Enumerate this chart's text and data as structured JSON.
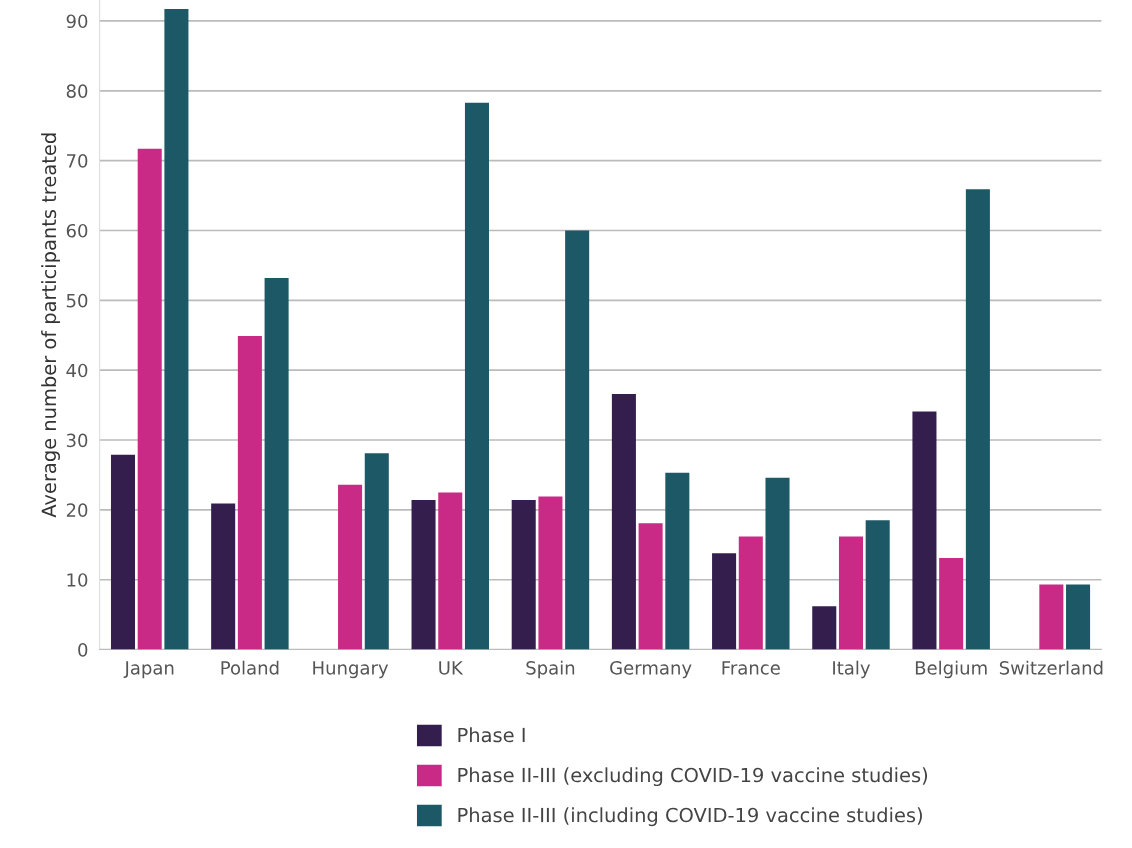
{
  "chart_data": {
    "type": "bar",
    "ylabel": "Average number of participants treated",
    "categories": [
      "Japan",
      "Poland",
      "Hungary",
      "UK",
      "Spain",
      "Germany",
      "France",
      "Italy",
      "Belgium",
      "Switzerland"
    ],
    "series": [
      {
        "name": "Phase I",
        "color": "#341e4e",
        "values": [
          27.9,
          20.9,
          null,
          21.4,
          21.4,
          36.6,
          13.8,
          6.2,
          34.1,
          null
        ]
      },
      {
        "name": "Phase II-III (excluding COVID-19 vaccine studies)",
        "color": "#c82a86",
        "values": [
          71.7,
          44.9,
          23.6,
          22.5,
          21.9,
          18.1,
          16.2,
          16.2,
          13.1,
          9.3
        ]
      },
      {
        "name": "Phase II-III (including COVID-19 vaccine studies)",
        "color": "#1c5866",
        "values": [
          91.7,
          53.2,
          28.1,
          78.3,
          60.0,
          25.3,
          24.6,
          18.5,
          65.9,
          9.3
        ]
      }
    ],
    "ylim": [
      0,
      93
    ],
    "yticks": [
      0,
      10,
      20,
      30,
      40,
      50,
      60,
      70,
      80,
      90
    ],
    "grid": "y",
    "legend": "bottom"
  }
}
